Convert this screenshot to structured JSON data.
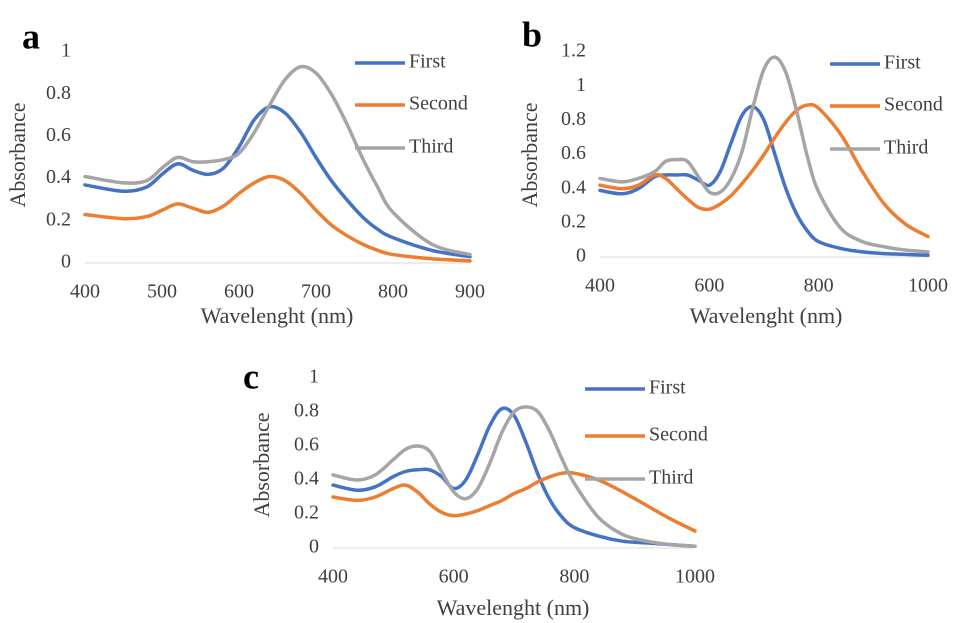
{
  "chart_data": [
    {
      "type": "line",
      "panel": "a",
      "ylabel": "Absorbance",
      "xlabel": "Wavelenght (nm)",
      "xlim": [
        400,
        900
      ],
      "xticks": [
        400,
        500,
        600,
        700,
        800,
        900
      ],
      "ylim": [
        0,
        1
      ],
      "yticks": [
        0,
        0.2,
        0.4,
        0.6,
        0.8,
        1
      ],
      "grid": false,
      "x": [
        400,
        450,
        480,
        500,
        520,
        540,
        560,
        580,
        600,
        620,
        640,
        660,
        680,
        700,
        720,
        740,
        760,
        780,
        800,
        850,
        900
      ],
      "series": [
        {
          "name": "First",
          "color": "#4472c4",
          "values": [
            0.37,
            0.34,
            0.36,
            0.42,
            0.47,
            0.44,
            0.42,
            0.45,
            0.55,
            0.68,
            0.74,
            0.71,
            0.62,
            0.5,
            0.39,
            0.3,
            0.22,
            0.16,
            0.12,
            0.06,
            0.03
          ]
        },
        {
          "name": "Second",
          "color": "#ed7d31",
          "values": [
            0.23,
            0.21,
            0.22,
            0.25,
            0.28,
            0.26,
            0.24,
            0.27,
            0.33,
            0.38,
            0.41,
            0.39,
            0.33,
            0.25,
            0.18,
            0.13,
            0.09,
            0.06,
            0.04,
            0.02,
            0.01
          ]
        },
        {
          "name": "Third",
          "color": "#a5a5a5",
          "values": [
            0.41,
            0.38,
            0.39,
            0.45,
            0.5,
            0.48,
            0.48,
            0.49,
            0.52,
            0.62,
            0.75,
            0.87,
            0.93,
            0.9,
            0.8,
            0.66,
            0.5,
            0.36,
            0.24,
            0.09,
            0.04
          ]
        }
      ]
    },
    {
      "type": "line",
      "panel": "b",
      "ylabel": "Absorbance",
      "xlabel": "Wavelenght (nm)",
      "xlim": [
        400,
        1000
      ],
      "xticks": [
        400,
        600,
        800,
        1000
      ],
      "ylim": [
        0,
        1.2
      ],
      "yticks": [
        0,
        0.2,
        0.4,
        0.6,
        0.8,
        1,
        1.2
      ],
      "grid": false,
      "x": [
        400,
        440,
        470,
        500,
        520,
        540,
        560,
        580,
        600,
        620,
        640,
        660,
        680,
        700,
        720,
        740,
        760,
        780,
        800,
        840,
        880,
        920,
        960,
        1000
      ],
      "series": [
        {
          "name": "First",
          "color": "#4472c4",
          "values": [
            0.39,
            0.37,
            0.4,
            0.47,
            0.48,
            0.48,
            0.48,
            0.45,
            0.42,
            0.5,
            0.67,
            0.83,
            0.88,
            0.8,
            0.6,
            0.4,
            0.25,
            0.15,
            0.09,
            0.05,
            0.03,
            0.02,
            0.015,
            0.01
          ]
        },
        {
          "name": "Second",
          "color": "#ed7d31",
          "values": [
            0.42,
            0.4,
            0.42,
            0.48,
            0.46,
            0.4,
            0.34,
            0.29,
            0.28,
            0.31,
            0.36,
            0.43,
            0.51,
            0.6,
            0.7,
            0.79,
            0.86,
            0.89,
            0.87,
            0.72,
            0.5,
            0.31,
            0.19,
            0.12
          ]
        },
        {
          "name": "Third",
          "color": "#a5a5a5",
          "values": [
            0.46,
            0.44,
            0.46,
            0.5,
            0.56,
            0.57,
            0.56,
            0.47,
            0.38,
            0.38,
            0.46,
            0.62,
            0.88,
            1.1,
            1.17,
            1.08,
            0.85,
            0.58,
            0.38,
            0.17,
            0.09,
            0.06,
            0.04,
            0.03
          ]
        }
      ]
    },
    {
      "type": "line",
      "panel": "c",
      "ylabel": "Absorbance",
      "xlabel": "Wavelenght (nm)",
      "xlim": [
        400,
        1000
      ],
      "xticks": [
        400,
        600,
        800,
        1000
      ],
      "ylim": [
        0,
        1
      ],
      "yticks": [
        0,
        0.2,
        0.4,
        0.6,
        0.8,
        1
      ],
      "grid": false,
      "x": [
        400,
        440,
        470,
        500,
        520,
        540,
        560,
        580,
        600,
        620,
        640,
        660,
        680,
        700,
        720,
        740,
        760,
        780,
        800,
        840,
        880,
        920,
        960,
        1000
      ],
      "series": [
        {
          "name": "First",
          "color": "#4472c4",
          "values": [
            0.37,
            0.34,
            0.36,
            0.42,
            0.45,
            0.46,
            0.46,
            0.42,
            0.35,
            0.4,
            0.55,
            0.72,
            0.82,
            0.78,
            0.62,
            0.43,
            0.28,
            0.18,
            0.12,
            0.07,
            0.04,
            0.03,
            0.02,
            0.01
          ]
        },
        {
          "name": "Second",
          "color": "#ed7d31",
          "values": [
            0.3,
            0.28,
            0.3,
            0.35,
            0.37,
            0.33,
            0.26,
            0.21,
            0.19,
            0.2,
            0.22,
            0.25,
            0.28,
            0.32,
            0.35,
            0.39,
            0.42,
            0.44,
            0.44,
            0.4,
            0.33,
            0.25,
            0.17,
            0.1
          ]
        },
        {
          "name": "Third",
          "color": "#a5a5a5",
          "values": [
            0.43,
            0.4,
            0.43,
            0.52,
            0.58,
            0.6,
            0.57,
            0.45,
            0.33,
            0.29,
            0.35,
            0.5,
            0.68,
            0.8,
            0.83,
            0.8,
            0.68,
            0.52,
            0.38,
            0.18,
            0.08,
            0.04,
            0.02,
            0.01
          ]
        }
      ]
    }
  ]
}
